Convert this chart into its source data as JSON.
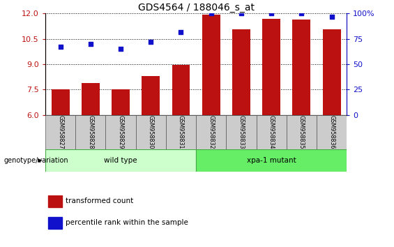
{
  "title": "GDS4564 / 188046_s_at",
  "samples": [
    "GSM958827",
    "GSM958828",
    "GSM958829",
    "GSM958830",
    "GSM958831",
    "GSM958832",
    "GSM958833",
    "GSM958834",
    "GSM958835",
    "GSM958836"
  ],
  "bar_values": [
    7.5,
    7.9,
    7.5,
    8.3,
    8.95,
    11.95,
    11.05,
    11.7,
    11.65,
    11.05
  ],
  "percentile_values": [
    67,
    70,
    65,
    72,
    82,
    100,
    100,
    100,
    100,
    97
  ],
  "bar_color": "#bb1111",
  "scatter_color": "#1111cc",
  "ylim_left": [
    6,
    12
  ],
  "yticks_left": [
    6,
    7.5,
    9,
    10.5,
    12
  ],
  "ylim_right": [
    0,
    100
  ],
  "yticks_right": [
    0,
    25,
    50,
    75,
    100
  ],
  "groups": [
    {
      "label": "wild type",
      "start": 0,
      "end": 5,
      "color": "#ccffcc",
      "border": "#44aa44"
    },
    {
      "label": "xpa-1 mutant",
      "start": 5,
      "end": 10,
      "color": "#66ee66",
      "border": "#44aa44"
    }
  ],
  "genotype_label": "genotype/variation",
  "legend_items": [
    {
      "color": "#bb1111",
      "label": "transformed count"
    },
    {
      "color": "#1111cc",
      "label": "percentile rank within the sample"
    }
  ],
  "bg_color": "#ffffff",
  "title_fontsize": 10,
  "tick_fontsize": 8,
  "bar_width": 0.6
}
